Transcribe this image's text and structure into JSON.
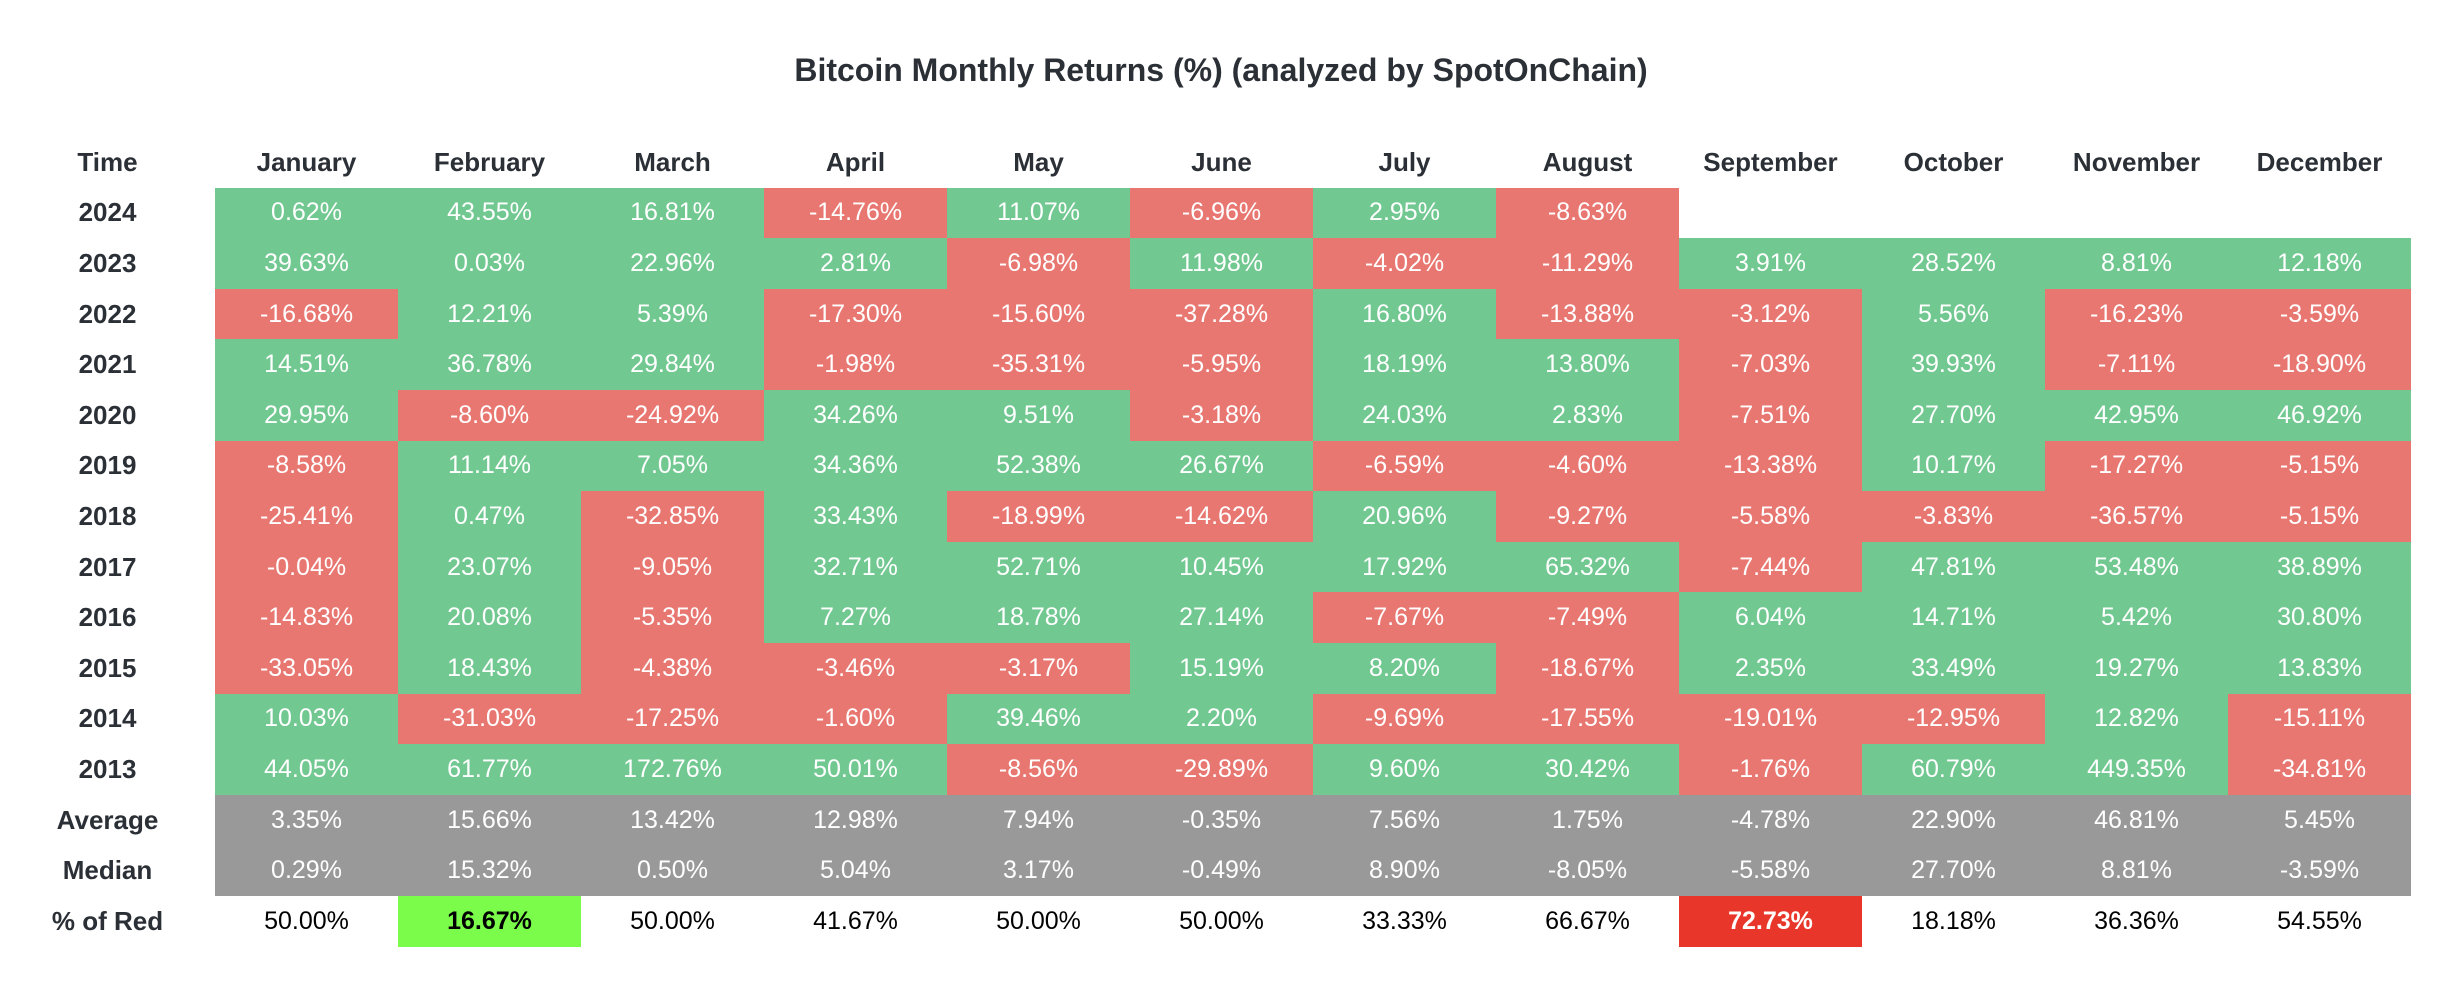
{
  "chart_data": {
    "type": "heatmap",
    "title": "Bitcoin Monthly Returns (%) (analyzed by SpotOnChain)",
    "corner_label": "Time",
    "columns": [
      "January",
      "February",
      "March",
      "April",
      "May",
      "June",
      "July",
      "August",
      "September",
      "October",
      "November",
      "December"
    ],
    "colors": {
      "positive": "#72c891",
      "negative": "#e87771",
      "summary": "#999999",
      "lowest_red_share": "#7cfc4a",
      "highest_red_share": "#e8372a"
    },
    "rows": [
      {
        "label": "2024",
        "values": [
          "0.62%",
          "43.55%",
          "16.81%",
          "-14.76%",
          "11.07%",
          "-6.96%",
          "2.95%",
          "-8.63%",
          "",
          "",
          "",
          ""
        ]
      },
      {
        "label": "2023",
        "values": [
          "39.63%",
          "0.03%",
          "22.96%",
          "2.81%",
          "-6.98%",
          "11.98%",
          "-4.02%",
          "-11.29%",
          "3.91%",
          "28.52%",
          "8.81%",
          "12.18%"
        ]
      },
      {
        "label": "2022",
        "values": [
          "-16.68%",
          "12.21%",
          "5.39%",
          "-17.30%",
          "-15.60%",
          "-37.28%",
          "16.80%",
          "-13.88%",
          "-3.12%",
          "5.56%",
          "-16.23%",
          "-3.59%"
        ]
      },
      {
        "label": "2021",
        "values": [
          "14.51%",
          "36.78%",
          "29.84%",
          "-1.98%",
          "-35.31%",
          "-5.95%",
          "18.19%",
          "13.80%",
          "-7.03%",
          "39.93%",
          "-7.11%",
          "-18.90%"
        ]
      },
      {
        "label": "2020",
        "values": [
          "29.95%",
          "-8.60%",
          "-24.92%",
          "34.26%",
          "9.51%",
          "-3.18%",
          "24.03%",
          "2.83%",
          "-7.51%",
          "27.70%",
          "42.95%",
          "46.92%"
        ]
      },
      {
        "label": "2019",
        "values": [
          "-8.58%",
          "11.14%",
          "7.05%",
          "34.36%",
          "52.38%",
          "26.67%",
          "-6.59%",
          "-4.60%",
          "-13.38%",
          "10.17%",
          "-17.27%",
          "-5.15%"
        ]
      },
      {
        "label": "2018",
        "values": [
          "-25.41%",
          "0.47%",
          "-32.85%",
          "33.43%",
          "-18.99%",
          "-14.62%",
          "20.96%",
          "-9.27%",
          "-5.58%",
          "-3.83%",
          "-36.57%",
          "-5.15%"
        ]
      },
      {
        "label": "2017",
        "values": [
          "-0.04%",
          "23.07%",
          "-9.05%",
          "32.71%",
          "52.71%",
          "10.45%",
          "17.92%",
          "65.32%",
          "-7.44%",
          "47.81%",
          "53.48%",
          "38.89%"
        ]
      },
      {
        "label": "2016",
        "values": [
          "-14.83%",
          "20.08%",
          "-5.35%",
          "7.27%",
          "18.78%",
          "27.14%",
          "-7.67%",
          "-7.49%",
          "6.04%",
          "14.71%",
          "5.42%",
          "30.80%"
        ]
      },
      {
        "label": "2015",
        "values": [
          "-33.05%",
          "18.43%",
          "-4.38%",
          "-3.46%",
          "-3.17%",
          "15.19%",
          "8.20%",
          "-18.67%",
          "2.35%",
          "33.49%",
          "19.27%",
          "13.83%"
        ]
      },
      {
        "label": "2014",
        "values": [
          "10.03%",
          "-31.03%",
          "-17.25%",
          "-1.60%",
          "39.46%",
          "2.20%",
          "-9.69%",
          "-17.55%",
          "-19.01%",
          "-12.95%",
          "12.82%",
          "-15.11%"
        ]
      },
      {
        "label": "2013",
        "values": [
          "44.05%",
          "61.77%",
          "172.76%",
          "50.01%",
          "-8.56%",
          "-29.89%",
          "9.60%",
          "30.42%",
          "-1.76%",
          "60.79%",
          "449.35%",
          "-34.81%"
        ]
      }
    ],
    "summary_rows": [
      {
        "label": "Average",
        "values": [
          "3.35%",
          "15.66%",
          "13.42%",
          "12.98%",
          "7.94%",
          "-0.35%",
          "7.56%",
          "1.75%",
          "-4.78%",
          "22.90%",
          "46.81%",
          "5.45%"
        ]
      },
      {
        "label": "Median",
        "values": [
          "0.29%",
          "15.32%",
          "0.50%",
          "5.04%",
          "3.17%",
          "-0.49%",
          "8.90%",
          "-8.05%",
          "-5.58%",
          "27.70%",
          "8.81%",
          "-3.59%"
        ]
      }
    ],
    "red_share_row": {
      "label": "% of Red",
      "values": [
        "50.00%",
        "16.67%",
        "50.00%",
        "41.67%",
        "50.00%",
        "50.00%",
        "33.33%",
        "66.67%",
        "72.73%",
        "18.18%",
        "36.36%",
        "54.55%"
      ],
      "lowest": "February",
      "highest": "September"
    }
  }
}
